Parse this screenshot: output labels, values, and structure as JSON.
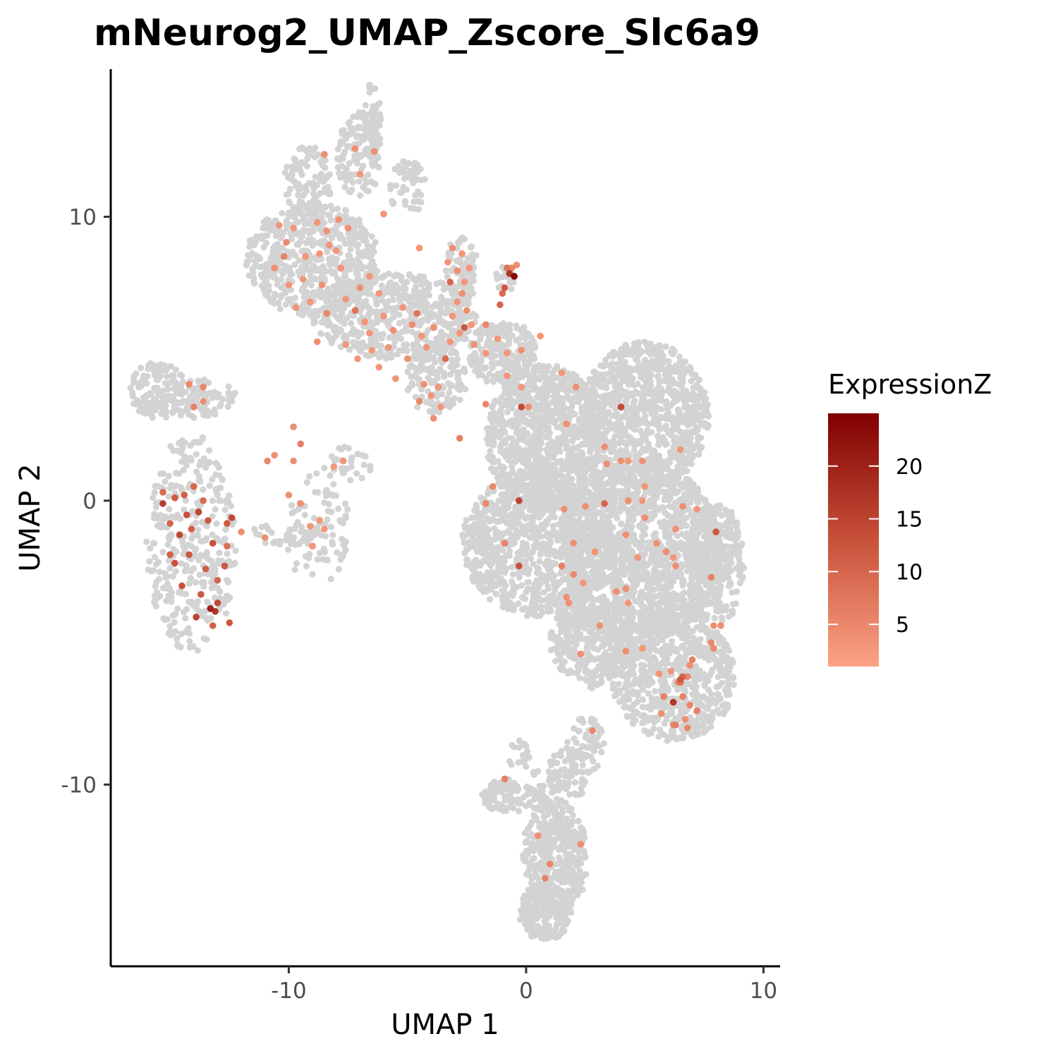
{
  "chart_data": {
    "type": "scatter",
    "title": "mNeurog2_UMAP_Zscore_Slc6a9",
    "xlabel": "UMAP 1",
    "ylabel": "UMAP 2",
    "xlim": [
      -17.5,
      10.7
    ],
    "ylim": [
      -16.4,
      15.2
    ],
    "x_ticks": [
      -10,
      0,
      10
    ],
    "x_tick_labels": [
      "-10",
      "0",
      "10"
    ],
    "y_ticks": [
      -10,
      0,
      10
    ],
    "y_tick_labels": [
      "-10",
      "0",
      "10"
    ],
    "grid": false,
    "background_color": "#d3d3d3",
    "legend": {
      "title": "ExpressionZ",
      "position": "right",
      "range": [
        1,
        25
      ],
      "ticks": [
        5,
        10,
        15,
        20
      ],
      "tick_labels": [
        "5",
        "10",
        "15",
        "20"
      ],
      "low_color": "#fca385",
      "high_color": "#800000"
    },
    "background_clusters": [
      {
        "cx": -15.5,
        "cy": 3.9,
        "rx": 1.2,
        "ry": 1.0,
        "n": 120
      },
      {
        "cx": -13.8,
        "cy": 3.6,
        "rx": 1.6,
        "ry": 0.7,
        "n": 90
      },
      {
        "cx": -14.1,
        "cy": -1.5,
        "rx": 1.9,
        "ry": 3.9,
        "n": 340
      },
      {
        "cx": -8.8,
        "cy": -1.0,
        "rx": 1.4,
        "ry": 2.0,
        "n": 90
      },
      {
        "cx": -7.5,
        "cy": 1.3,
        "rx": 1.1,
        "ry": 0.6,
        "n": 30
      },
      {
        "cx": -10.0,
        "cy": -1.2,
        "rx": 1.8,
        "ry": 0.4,
        "n": 40
      },
      {
        "cx": -9.0,
        "cy": 8.5,
        "rx": 2.8,
        "ry": 2.0,
        "n": 560
      },
      {
        "cx": -9.2,
        "cy": 11.2,
        "rx": 1.0,
        "ry": 1.3,
        "n": 110
      },
      {
        "cx": -7.0,
        "cy": 12.2,
        "rx": 1.0,
        "ry": 1.5,
        "n": 120
      },
      {
        "cx": -6.5,
        "cy": 13.2,
        "rx": 0.4,
        "ry": 1.5,
        "n": 50
      },
      {
        "cx": -5.0,
        "cy": 11.0,
        "rx": 0.8,
        "ry": 1.0,
        "n": 50
      },
      {
        "cx": -5.5,
        "cy": 6.5,
        "rx": 3.5,
        "ry": 1.5,
        "n": 520
      },
      {
        "cx": -3.8,
        "cy": 4.3,
        "rx": 1.3,
        "ry": 1.3,
        "n": 140
      },
      {
        "cx": -2.7,
        "cy": 8.2,
        "rx": 0.7,
        "ry": 1.2,
        "n": 70
      },
      {
        "cx": -0.9,
        "cy": 7.8,
        "rx": 0.4,
        "ry": 0.5,
        "n": 20
      },
      {
        "cx": -1.0,
        "cy": 5.2,
        "rx": 1.4,
        "ry": 1.2,
        "n": 200
      },
      {
        "cx": 0.8,
        "cy": 2.2,
        "rx": 2.5,
        "ry": 2.6,
        "n": 900
      },
      {
        "cx": 5.0,
        "cy": 3.0,
        "rx": 2.7,
        "ry": 2.6,
        "n": 900
      },
      {
        "cx": 0.5,
        "cy": -1.5,
        "rx": 3.2,
        "ry": 2.6,
        "n": 1000
      },
      {
        "cx": 4.8,
        "cy": -1.8,
        "rx": 3.4,
        "ry": 3.2,
        "n": 1500
      },
      {
        "cx": 6.2,
        "cy": -6.2,
        "rx": 2.6,
        "ry": 2.3,
        "n": 700
      },
      {
        "cx": 2.8,
        "cy": -5.0,
        "rx": 1.8,
        "ry": 1.6,
        "n": 350
      },
      {
        "cx": 8.0,
        "cy": -2.2,
        "rx": 1.2,
        "ry": 2.2,
        "n": 300
      },
      {
        "cx": 2.5,
        "cy": -8.6,
        "rx": 0.8,
        "ry": 1.0,
        "n": 60
      },
      {
        "cx": 1.8,
        "cy": -9.6,
        "rx": 0.9,
        "ry": 0.9,
        "n": 60
      },
      {
        "cx": 0.8,
        "cy": -10.2,
        "rx": 0.8,
        "ry": 0.8,
        "n": 50
      },
      {
        "cx": -0.8,
        "cy": -10.4,
        "rx": 1.1,
        "ry": 0.6,
        "n": 80
      },
      {
        "cx": -0.3,
        "cy": -9.0,
        "rx": 0.5,
        "ry": 0.6,
        "n": 20
      },
      {
        "cx": 1.2,
        "cy": -12.6,
        "rx": 1.4,
        "ry": 2.1,
        "n": 420
      },
      {
        "cx": 0.8,
        "cy": -14.5,
        "rx": 1.1,
        "ry": 1.0,
        "n": 180
      }
    ],
    "expression_points": [
      {
        "x": -15.3,
        "y": 0.3,
        "z": 9
      },
      {
        "x": -14.8,
        "y": 0.1,
        "z": 12
      },
      {
        "x": -14.4,
        "y": 0.2,
        "z": 11
      },
      {
        "x": -14.0,
        "y": 0.5,
        "z": 10
      },
      {
        "x": -13.6,
        "y": 0.0,
        "z": 9
      },
      {
        "x": -14.3,
        "y": -0.5,
        "z": 13
      },
      {
        "x": -13.8,
        "y": -0.4,
        "z": 15
      },
      {
        "x": -13.4,
        "y": -0.7,
        "z": 12
      },
      {
        "x": -15.0,
        "y": -0.8,
        "z": 10
      },
      {
        "x": -14.6,
        "y": -1.2,
        "z": 14
      },
      {
        "x": -14.1,
        "y": -1.0,
        "z": 11
      },
      {
        "x": -13.2,
        "y": -1.5,
        "z": 13
      },
      {
        "x": -12.6,
        "y": -0.8,
        "z": 12
      },
      {
        "x": -12.4,
        "y": -0.6,
        "z": 14
      },
      {
        "x": -14.8,
        "y": -2.2,
        "z": 13
      },
      {
        "x": -14.2,
        "y": -1.9,
        "z": 12
      },
      {
        "x": -13.5,
        "y": -2.4,
        "z": 11
      },
      {
        "x": -13.0,
        "y": -2.8,
        "z": 10
      },
      {
        "x": -12.7,
        "y": -2.3,
        "z": 12
      },
      {
        "x": -14.5,
        "y": -3.0,
        "z": 13
      },
      {
        "x": -13.7,
        "y": -3.3,
        "z": 12
      },
      {
        "x": -13.0,
        "y": -3.6,
        "z": 14
      },
      {
        "x": -12.5,
        "y": -4.3,
        "z": 12
      },
      {
        "x": -13.2,
        "y": -4.4,
        "z": 11
      },
      {
        "x": -13.9,
        "y": -4.1,
        "z": 15
      },
      {
        "x": -13.3,
        "y": -3.8,
        "z": 20
      },
      {
        "x": -13.1,
        "y": -3.9,
        "z": 17
      },
      {
        "x": -15.3,
        "y": -0.1,
        "z": 16
      },
      {
        "x": -12.6,
        "y": -1.6,
        "z": 9
      },
      {
        "x": -15.0,
        "y": -1.9,
        "z": 11
      },
      {
        "x": -14.2,
        "y": 4.1,
        "z": 5
      },
      {
        "x": -14.0,
        "y": 3.3,
        "z": 6
      },
      {
        "x": -13.6,
        "y": 4.0,
        "z": 5
      },
      {
        "x": -13.6,
        "y": 3.5,
        "z": 4
      },
      {
        "x": -9.8,
        "y": 2.6,
        "z": 4
      },
      {
        "x": -9.5,
        "y": 2.0,
        "z": 6
      },
      {
        "x": -9.8,
        "y": 1.4,
        "z": 4
      },
      {
        "x": -10.6,
        "y": 1.6,
        "z": 4
      },
      {
        "x": -10.9,
        "y": 1.4,
        "z": 5
      },
      {
        "x": -7.7,
        "y": 1.4,
        "z": 3
      },
      {
        "x": -8.1,
        "y": 1.2,
        "z": 3
      },
      {
        "x": -11.0,
        "y": -1.3,
        "z": 4
      },
      {
        "x": -9.5,
        "y": -0.1,
        "z": 4
      },
      {
        "x": -10.0,
        "y": 0.2,
        "z": 4
      },
      {
        "x": -9.1,
        "y": -0.9,
        "z": 3
      },
      {
        "x": -8.7,
        "y": -0.7,
        "z": 3
      },
      {
        "x": -8.5,
        "y": -1.0,
        "z": 3
      },
      {
        "x": -9.0,
        "y": -1.6,
        "z": 3
      },
      {
        "x": -12.0,
        "y": -1.1,
        "z": 4
      },
      {
        "x": -9.3,
        "y": 8.6,
        "z": 3
      },
      {
        "x": -10.1,
        "y": 9.1,
        "z": 5
      },
      {
        "x": -10.6,
        "y": 8.2,
        "z": 4
      },
      {
        "x": -10.0,
        "y": 7.6,
        "z": 3
      },
      {
        "x": -9.4,
        "y": 7.8,
        "z": 3
      },
      {
        "x": -8.7,
        "y": 8.7,
        "z": 3
      },
      {
        "x": -8.4,
        "y": 9.5,
        "z": 4
      },
      {
        "x": -8.0,
        "y": 8.8,
        "z": 3
      },
      {
        "x": -7.8,
        "y": 8.2,
        "z": 3
      },
      {
        "x": -8.6,
        "y": 7.6,
        "z": 4
      },
      {
        "x": -9.1,
        "y": 7.0,
        "z": 3
      },
      {
        "x": -9.7,
        "y": 6.8,
        "z": 3
      },
      {
        "x": -8.4,
        "y": 6.6,
        "z": 5
      },
      {
        "x": -7.6,
        "y": 7.1,
        "z": 3
      },
      {
        "x": -7.0,
        "y": 7.5,
        "z": 4
      },
      {
        "x": -7.2,
        "y": 6.7,
        "z": 8
      },
      {
        "x": -6.6,
        "y": 7.9,
        "z": 3
      },
      {
        "x": -6.2,
        "y": 7.3,
        "z": 3
      },
      {
        "x": -6.8,
        "y": 6.3,
        "z": 3
      },
      {
        "x": -7.5,
        "y": 9.6,
        "z": 4
      },
      {
        "x": -9.8,
        "y": 9.6,
        "z": 3
      },
      {
        "x": -10.4,
        "y": 9.7,
        "z": 3
      },
      {
        "x": -10.2,
        "y": 8.6,
        "z": 6
      },
      {
        "x": -8.3,
        "y": 9.0,
        "z": 3
      },
      {
        "x": -8.8,
        "y": 9.8,
        "z": 3
      },
      {
        "x": -7.9,
        "y": 9.9,
        "z": 4
      },
      {
        "x": -6.0,
        "y": 6.5,
        "z": 3
      },
      {
        "x": -5.6,
        "y": 6.0,
        "z": 4
      },
      {
        "x": -5.2,
        "y": 6.8,
        "z": 3
      },
      {
        "x": -4.8,
        "y": 6.2,
        "z": 4
      },
      {
        "x": -4.4,
        "y": 5.8,
        "z": 3
      },
      {
        "x": -4.6,
        "y": 6.6,
        "z": 8
      },
      {
        "x": -5.8,
        "y": 5.4,
        "z": 3
      },
      {
        "x": -5.0,
        "y": 5.0,
        "z": 4
      },
      {
        "x": -4.2,
        "y": 5.4,
        "z": 3
      },
      {
        "x": -3.9,
        "y": 6.1,
        "z": 4
      },
      {
        "x": -6.2,
        "y": 4.7,
        "z": 3
      },
      {
        "x": -5.5,
        "y": 4.3,
        "z": 3
      },
      {
        "x": -4.3,
        "y": 4.1,
        "z": 4
      },
      {
        "x": -4.0,
        "y": 3.7,
        "z": 3
      },
      {
        "x": -4.5,
        "y": 3.5,
        "z": 5
      },
      {
        "x": -3.6,
        "y": 3.3,
        "z": 3
      },
      {
        "x": -3.7,
        "y": 4.0,
        "z": 3
      },
      {
        "x": -3.9,
        "y": 2.9,
        "z": 4
      },
      {
        "x": -3.4,
        "y": 5.0,
        "z": 9
      },
      {
        "x": -3.2,
        "y": 5.6,
        "z": 3
      },
      {
        "x": -6.6,
        "y": 5.9,
        "z": 3
      },
      {
        "x": -7.6,
        "y": 5.5,
        "z": 3
      },
      {
        "x": -8.8,
        "y": 5.6,
        "z": 4
      },
      {
        "x": -7.1,
        "y": 5.0,
        "z": 3
      },
      {
        "x": -6.5,
        "y": 5.3,
        "z": 3
      },
      {
        "x": -3.1,
        "y": 8.9,
        "z": 4
      },
      {
        "x": -2.7,
        "y": 8.7,
        "z": 3
      },
      {
        "x": -3.3,
        "y": 8.4,
        "z": 3
      },
      {
        "x": -2.9,
        "y": 8.1,
        "z": 4
      },
      {
        "x": -2.6,
        "y": 7.7,
        "z": 3
      },
      {
        "x": -2.4,
        "y": 8.2,
        "z": 3
      },
      {
        "x": -3.2,
        "y": 7.7,
        "z": 10
      },
      {
        "x": -2.7,
        "y": 7.3,
        "z": 4
      },
      {
        "x": -2.9,
        "y": 7.0,
        "z": 3
      },
      {
        "x": -2.5,
        "y": 6.7,
        "z": 4
      },
      {
        "x": -2.3,
        "y": 6.2,
        "z": 3
      },
      {
        "x": -2.8,
        "y": 5.9,
        "z": 3
      },
      {
        "x": -2.2,
        "y": 5.5,
        "z": 4
      },
      {
        "x": -1.7,
        "y": 6.2,
        "z": 5
      },
      {
        "x": -3.1,
        "y": 6.5,
        "z": 3
      },
      {
        "x": -2.6,
        "y": 6.1,
        "z": 12
      },
      {
        "x": -0.8,
        "y": 8.2,
        "z": 8
      },
      {
        "x": -0.7,
        "y": 8.0,
        "z": 17
      },
      {
        "x": -0.5,
        "y": 7.9,
        "z": 24
      },
      {
        "x": -0.6,
        "y": 8.2,
        "z": 5
      },
      {
        "x": -0.4,
        "y": 8.3,
        "z": 4
      },
      {
        "x": -1.0,
        "y": 7.3,
        "z": 9
      },
      {
        "x": -1.1,
        "y": 6.9,
        "z": 10
      },
      {
        "x": -0.9,
        "y": 7.5,
        "z": 12
      },
      {
        "x": -1.2,
        "y": 5.7,
        "z": 3
      },
      {
        "x": -0.8,
        "y": 5.2,
        "z": 3
      },
      {
        "x": -0.2,
        "y": 5.3,
        "z": 4
      },
      {
        "x": 0.6,
        "y": 5.8,
        "z": 3
      },
      {
        "x": -1.7,
        "y": 5.2,
        "z": 3
      },
      {
        "x": -0.8,
        "y": 4.4,
        "z": 3
      },
      {
        "x": -0.2,
        "y": 3.3,
        "z": 14
      },
      {
        "x": -1.7,
        "y": 3.4,
        "z": 5
      },
      {
        "x": -2.8,
        "y": 2.2,
        "z": 6
      },
      {
        "x": 0.1,
        "y": 3.3,
        "z": 4
      },
      {
        "x": -0.2,
        "y": 4.0,
        "z": 3
      },
      {
        "x": 1.5,
        "y": 4.5,
        "z": 3
      },
      {
        "x": 2.1,
        "y": 4.0,
        "z": 4
      },
      {
        "x": 1.7,
        "y": 2.7,
        "z": 4
      },
      {
        "x": 3.3,
        "y": 1.9,
        "z": 4
      },
      {
        "x": 3.4,
        "y": 1.3,
        "z": 4
      },
      {
        "x": 4.0,
        "y": 1.4,
        "z": 4
      },
      {
        "x": 4.3,
        "y": 1.4,
        "z": 3
      },
      {
        "x": 4.9,
        "y": 1.4,
        "z": 4
      },
      {
        "x": 6.5,
        "y": 1.8,
        "z": 3
      },
      {
        "x": 4.0,
        "y": 3.3,
        "z": 14
      },
      {
        "x": -1.4,
        "y": 0.5,
        "z": 5
      },
      {
        "x": -1.7,
        "y": -0.1,
        "z": 5
      },
      {
        "x": -0.3,
        "y": 0.0,
        "z": 15
      },
      {
        "x": 1.6,
        "y": -0.3,
        "z": 4
      },
      {
        "x": 2.5,
        "y": -0.2,
        "z": 4
      },
      {
        "x": 3.3,
        "y": -0.1,
        "z": 10
      },
      {
        "x": 4.3,
        "y": 0.0,
        "z": 4
      },
      {
        "x": 4.9,
        "y": 0.0,
        "z": 3
      },
      {
        "x": 5.0,
        "y": -0.6,
        "z": 4
      },
      {
        "x": 6.6,
        "y": -0.2,
        "z": 4
      },
      {
        "x": 7.2,
        "y": -0.3,
        "z": 3
      },
      {
        "x": 5.0,
        "y": 0.5,
        "z": 3
      },
      {
        "x": 8.0,
        "y": -1.1,
        "z": 12
      },
      {
        "x": 6.3,
        "y": -1.0,
        "z": 4
      },
      {
        "x": 5.5,
        "y": -1.5,
        "z": 4
      },
      {
        "x": 5.9,
        "y": -1.8,
        "z": 4
      },
      {
        "x": 4.2,
        "y": -1.2,
        "z": 4
      },
      {
        "x": 4.7,
        "y": -2.0,
        "z": 3
      },
      {
        "x": 2.0,
        "y": -1.5,
        "z": 4
      },
      {
        "x": 2.9,
        "y": -1.8,
        "z": 3
      },
      {
        "x": -0.9,
        "y": -1.5,
        "z": 6
      },
      {
        "x": 1.5,
        "y": -2.3,
        "z": 6
      },
      {
        "x": 2.4,
        "y": -2.9,
        "z": 3
      },
      {
        "x": 2.0,
        "y": -2.6,
        "z": 5
      },
      {
        "x": 1.7,
        "y": -3.4,
        "z": 4
      },
      {
        "x": 1.8,
        "y": -3.6,
        "z": 4
      },
      {
        "x": 3.8,
        "y": -3.2,
        "z": 4
      },
      {
        "x": 4.2,
        "y": -3.1,
        "z": 4
      },
      {
        "x": 4.3,
        "y": -3.6,
        "z": 3
      },
      {
        "x": 6.2,
        "y": -2.0,
        "z": 3
      },
      {
        "x": 6.3,
        "y": -2.3,
        "z": 4
      },
      {
        "x": -0.3,
        "y": -2.3,
        "z": 13
      },
      {
        "x": 3.1,
        "y": -4.4,
        "z": 4
      },
      {
        "x": 4.2,
        "y": -5.3,
        "z": 4
      },
      {
        "x": 4.9,
        "y": -5.2,
        "z": 3
      },
      {
        "x": 2.3,
        "y": -5.4,
        "z": 4
      },
      {
        "x": 7.8,
        "y": -2.7,
        "z": 6
      },
      {
        "x": 7.9,
        "y": -4.4,
        "z": 4
      },
      {
        "x": 8.2,
        "y": -4.4,
        "z": 4
      },
      {
        "x": 7.8,
        "y": -5.0,
        "z": 5
      },
      {
        "x": 7.9,
        "y": -5.2,
        "z": 5
      },
      {
        "x": 7.0,
        "y": -5.6,
        "z": 6
      },
      {
        "x": 6.9,
        "y": -5.8,
        "z": 4
      },
      {
        "x": 6.8,
        "y": -6.2,
        "z": 5
      },
      {
        "x": 6.6,
        "y": -6.2,
        "z": 10
      },
      {
        "x": 6.5,
        "y": -6.4,
        "z": 8
      },
      {
        "x": 6.1,
        "y": -6.0,
        "z": 3
      },
      {
        "x": 6.6,
        "y": -6.9,
        "z": 6
      },
      {
        "x": 6.4,
        "y": -6.4,
        "z": 5
      },
      {
        "x": 5.6,
        "y": -6.1,
        "z": 3
      },
      {
        "x": 6.5,
        "y": -6.3,
        "z": 12
      },
      {
        "x": 6.2,
        "y": -7.1,
        "z": 17
      },
      {
        "x": 5.8,
        "y": -6.9,
        "z": 6
      },
      {
        "x": 7.2,
        "y": -7.4,
        "z": 6
      },
      {
        "x": 6.9,
        "y": -7.2,
        "z": 5
      },
      {
        "x": 6.3,
        "y": -7.9,
        "z": 6
      },
      {
        "x": 6.2,
        "y": -7.9,
        "z": 5
      },
      {
        "x": 6.8,
        "y": -8.0,
        "z": 5
      },
      {
        "x": 6.7,
        "y": -7.7,
        "z": 4
      },
      {
        "x": 5.7,
        "y": -7.5,
        "z": 4
      },
      {
        "x": 2.8,
        "y": -8.1,
        "z": 5
      },
      {
        "x": -0.9,
        "y": -9.8,
        "z": 6
      },
      {
        "x": 0.5,
        "y": -11.8,
        "z": 4
      },
      {
        "x": 2.3,
        "y": -12.1,
        "z": 4
      },
      {
        "x": 1.0,
        "y": -12.8,
        "z": 5
      },
      {
        "x": 0.8,
        "y": -13.3,
        "z": 6
      },
      {
        "x": -7.2,
        "y": 12.4,
        "z": 4
      },
      {
        "x": -6.4,
        "y": 12.3,
        "z": 4
      },
      {
        "x": -8.5,
        "y": 12.2,
        "z": 4
      },
      {
        "x": -7.0,
        "y": 11.5,
        "z": 3
      },
      {
        "x": -4.5,
        "y": 8.9,
        "z": 3
      },
      {
        "x": -6.0,
        "y": 10.1,
        "z": 3
      }
    ]
  }
}
